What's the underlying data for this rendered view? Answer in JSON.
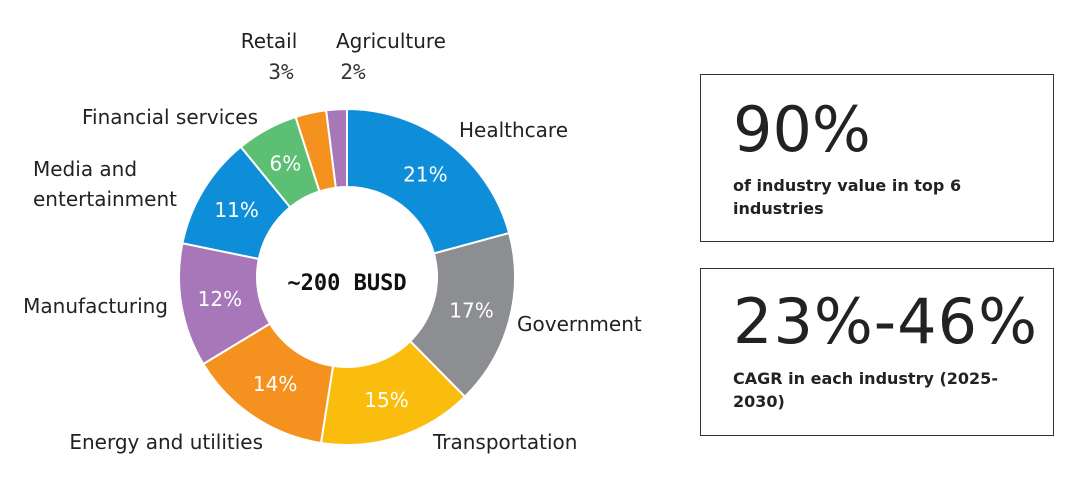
{
  "chart_data": {
    "type": "pie",
    "subtype": "donut",
    "center_label": "~200 BUSD",
    "categories": [
      "Healthcare",
      "Government",
      "Transportation",
      "Energy and utilities",
      "Manufacturing",
      "Media and entertainment",
      "Financial services",
      "Retail",
      "Agriculture"
    ],
    "values": [
      21,
      17,
      15,
      14,
      12,
      11,
      6,
      3,
      2
    ],
    "value_labels": [
      "21%",
      "17%",
      "15%",
      "14%",
      "12%",
      "11%",
      "6%",
      "3%",
      "2%"
    ],
    "colors": [
      "#0e8ed8",
      "#8c8e91",
      "#fbbd0d",
      "#f5921f",
      "#a877b9",
      "#0e8ed8",
      "#5cbf73",
      "#f5921f",
      "#a877b9"
    ],
    "unit": "%"
  },
  "stats": [
    {
      "value": "90%",
      "description": "of industry value in top 6 industries"
    },
    {
      "value": "23%-46%",
      "description": "CAGR in each industry (2025-2030)"
    }
  ]
}
